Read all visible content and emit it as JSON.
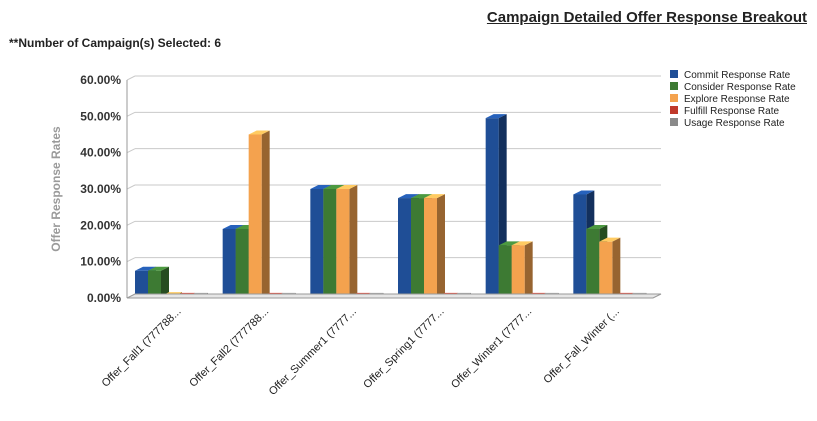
{
  "report": {
    "title": "Campaign Detailed Offer Response Breakout",
    "selection_note": "**Number of Campaign(s) Selected: 6"
  },
  "chart_data": {
    "type": "bar",
    "title": "",
    "xlabel": "",
    "ylabel": "Offer Response Rates",
    "ylim": [
      0,
      60
    ],
    "yticks": [
      "0.00%",
      "10.00%",
      "20.00%",
      "30.00%",
      "40.00%",
      "50.00%",
      "60.00%"
    ],
    "grid": true,
    "legend_position": "right",
    "categories": [
      "Offer_Fall1 (777788...",
      "Offer_Fall2 (777788...",
      "Offer_Summer1 (7777...",
      "Offer_Spring1 (7777...",
      "Offer_Winter1 (7777...",
      "Offer_Fall_Winter (..."
    ],
    "series": [
      {
        "name": "Commit Response Rate",
        "color": "#1f4e96",
        "values": [
          7.5,
          19,
          30,
          27.5,
          49.5,
          28.5
        ]
      },
      {
        "name": "Consider Response Rate",
        "color": "#3d7a33",
        "values": [
          7.5,
          19,
          30,
          27.5,
          14.5,
          19
        ]
      },
      {
        "name": "Explore Response Rate",
        "color": "#f4a24e",
        "values": [
          0.5,
          45,
          30,
          27.5,
          14.5,
          15.5
        ]
      },
      {
        "name": "Fulfill Response Rate",
        "color": "#c0392b",
        "values": [
          0.3,
          0.3,
          0.3,
          0.3,
          0.3,
          0.3
        ]
      },
      {
        "name": "Usage Response Rate",
        "color": "#8a8a8a",
        "values": [
          0.3,
          0.3,
          0.3,
          0.3,
          0.3,
          0.3
        ]
      }
    ]
  }
}
